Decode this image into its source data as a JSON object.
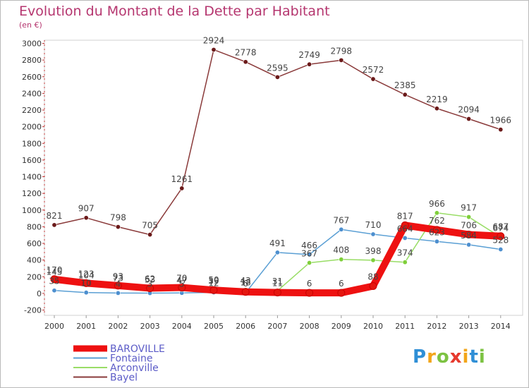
{
  "header": {
    "title": "Evolution du Montant de la Dette par Habitant",
    "unit": "(en €)"
  },
  "chart_data": {
    "type": "line",
    "title": "Evolution du Montant de la Dette par Habitant",
    "ylabel": "(en €)",
    "xlabel": "",
    "ylim": [
      -200,
      3000
    ],
    "yticks": [
      -200,
      0,
      200,
      400,
      600,
      800,
      1000,
      1200,
      1400,
      1600,
      1800,
      2000,
      2200,
      2400,
      2600,
      2800,
      3000
    ],
    "categories": [
      "2000",
      "2001",
      "2002",
      "2003",
      "2004",
      "2005",
      "2006",
      "2007",
      "2008",
      "2009",
      "2010",
      "2011",
      "2012",
      "2013",
      "2014"
    ],
    "grid": false,
    "legend_position": "bottom-left",
    "series": [
      {
        "name": "BAROVILLE",
        "color": "#ee1111",
        "marker": "#e5160f",
        "width": 10,
        "values": [
          170,
          123,
          93,
          62,
          70,
          39,
          18,
          11,
          6,
          6,
          88,
          817,
          762,
          706,
          687
        ],
        "labels": [
          "170",
          "123",
          "93",
          "62",
          "70",
          "39",
          "18",
          "11",
          "6",
          "6",
          "88",
          "817",
          "762",
          "706",
          "687"
        ]
      },
      {
        "name": "Fontaine",
        "color": "#5a9fd4",
        "marker": "#4d8fcf",
        "width": 1.5,
        "values": [
          35,
          10,
          4,
          3,
          5,
          12,
          6,
          491,
          466,
          767,
          710,
          664,
          623,
          584,
          528
        ],
        "labels": [
          "35",
          "10",
          "4",
          "3",
          "5",
          "12",
          "6",
          "491",
          "466",
          "767",
          "710",
          "664",
          "623",
          "584",
          "528"
        ]
      },
      {
        "name": "Arconville",
        "color": "#99dd66",
        "marker": "#7fcf3a",
        "width": 1.5,
        "values": [
          145,
          104,
          73,
          53,
          47,
          50,
          43,
          31,
          367,
          408,
          398,
          374,
          966,
          917,
          674
        ],
        "labels": [
          "145",
          "104",
          "73",
          "53",
          "47",
          "50",
          "43",
          "31",
          "367",
          "408",
          "398",
          "374",
          "966",
          "917",
          "674"
        ]
      },
      {
        "name": "Bayel",
        "color": "#8a3a3a",
        "marker": "#6b1a1a",
        "width": 1.5,
        "values": [
          821,
          907,
          798,
          705,
          1261,
          2924,
          2778,
          2595,
          2749,
          2798,
          2572,
          2385,
          2219,
          2094,
          1966
        ],
        "labels": [
          "821",
          "907",
          "798",
          "705",
          "1261",
          "2924",
          "2778",
          "2595",
          "2749",
          "2798",
          "2572",
          "2385",
          "2219",
          "2094",
          "1966"
        ]
      }
    ]
  },
  "branding": {
    "logo_letters": [
      "P",
      "r",
      "o",
      "x",
      "i",
      "t",
      "i"
    ],
    "logo_colors": [
      "#2f8fd6",
      "#f2a51a",
      "#7cc242",
      "#e63a2e",
      "#f2a51a",
      "#2f8fd6",
      "#7cc242"
    ]
  }
}
